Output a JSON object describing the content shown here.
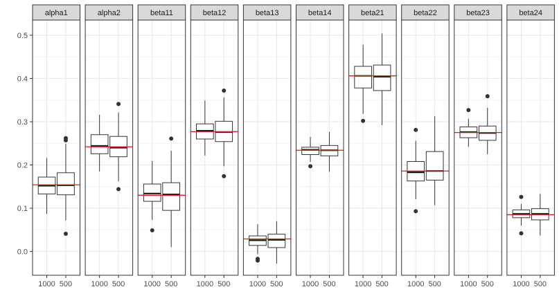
{
  "chart_data": {
    "type": "boxplot",
    "y_ticks": [
      "0.0",
      "0.1",
      "0.2",
      "0.3",
      "0.4",
      "0.5"
    ],
    "ylim": [
      -0.055,
      0.535
    ],
    "categories": [
      "1000",
      "500"
    ],
    "reference_line_color": "#e41a1c",
    "facets": [
      {
        "label": "alpha1",
        "ref": 0.154,
        "boxes": [
          {
            "cat": "1000",
            "wlo": 0.087,
            "q1": 0.133,
            "med": 0.152,
            "q3": 0.172,
            "whi": 0.216,
            "outliers": []
          },
          {
            "cat": "500",
            "wlo": 0.072,
            "q1": 0.131,
            "med": 0.153,
            "q3": 0.182,
            "whi": 0.249,
            "outliers": [
              0.041,
              0.257,
              0.262
            ]
          }
        ]
      },
      {
        "label": "alpha2",
        "ref": 0.242,
        "boxes": [
          {
            "cat": "1000",
            "wlo": 0.185,
            "q1": 0.226,
            "med": 0.244,
            "q3": 0.27,
            "whi": 0.316,
            "outliers": []
          },
          {
            "cat": "500",
            "wlo": 0.162,
            "q1": 0.219,
            "med": 0.24,
            "q3": 0.266,
            "whi": 0.321,
            "outliers": [
              0.144,
              0.341
            ]
          }
        ]
      },
      {
        "label": "beta11",
        "ref": 0.13,
        "boxes": [
          {
            "cat": "1000",
            "wlo": 0.073,
            "q1": 0.116,
            "med": 0.134,
            "q3": 0.156,
            "whi": 0.209,
            "outliers": [
              0.049
            ]
          },
          {
            "cat": "500",
            "wlo": 0.01,
            "q1": 0.095,
            "med": 0.132,
            "q3": 0.159,
            "whi": 0.233,
            "outliers": [
              0.261
            ]
          }
        ]
      },
      {
        "label": "beta12",
        "ref": 0.277,
        "boxes": [
          {
            "cat": "1000",
            "wlo": 0.222,
            "q1": 0.26,
            "med": 0.279,
            "q3": 0.295,
            "whi": 0.349,
            "outliers": []
          },
          {
            "cat": "500",
            "wlo": 0.197,
            "q1": 0.254,
            "med": 0.276,
            "q3": 0.301,
            "whi": 0.356,
            "outliers": [
              0.174,
              0.372
            ]
          }
        ]
      },
      {
        "label": "beta13",
        "ref": 0.029,
        "boxes": [
          {
            "cat": "1000",
            "wlo": -0.006,
            "q1": 0.014,
            "med": 0.026,
            "q3": 0.036,
            "whi": 0.063,
            "outliers": [
              -0.017,
              -0.021
            ]
          },
          {
            "cat": "500",
            "wlo": -0.028,
            "q1": 0.009,
            "med": 0.027,
            "q3": 0.04,
            "whi": 0.07,
            "outliers": []
          }
        ]
      },
      {
        "label": "beta14",
        "ref": 0.234,
        "boxes": [
          {
            "cat": "1000",
            "wlo": 0.207,
            "q1": 0.224,
            "med": 0.235,
            "q3": 0.241,
            "whi": 0.265,
            "outliers": [
              0.197
            ]
          },
          {
            "cat": "500",
            "wlo": 0.184,
            "q1": 0.221,
            "med": 0.234,
            "q3": 0.245,
            "whi": 0.276,
            "outliers": []
          }
        ]
      },
      {
        "label": "beta21",
        "ref": 0.406,
        "boxes": [
          {
            "cat": "1000",
            "wlo": 0.318,
            "q1": 0.378,
            "med": 0.406,
            "q3": 0.428,
            "whi": 0.478,
            "outliers": [
              0.302
            ]
          },
          {
            "cat": "500",
            "wlo": 0.292,
            "q1": 0.372,
            "med": 0.404,
            "q3": 0.431,
            "whi": 0.504,
            "outliers": []
          }
        ]
      },
      {
        "label": "beta22",
        "ref": 0.186,
        "boxes": [
          {
            "cat": "1000",
            "wlo": 0.121,
            "q1": 0.163,
            "med": 0.183,
            "q3": 0.208,
            "whi": 0.256,
            "outliers": [
              0.093,
              0.281
            ]
          },
          {
            "cat": "500",
            "wlo": 0.107,
            "q1": 0.165,
            "med": 0.186,
            "q3": 0.231,
            "whi": 0.313,
            "outliers": []
          }
        ]
      },
      {
        "label": "beta23",
        "ref": 0.275,
        "boxes": [
          {
            "cat": "1000",
            "wlo": 0.242,
            "q1": 0.263,
            "med": 0.276,
            "q3": 0.288,
            "whi": 0.307,
            "outliers": [
              0.327
            ]
          },
          {
            "cat": "500",
            "wlo": 0.225,
            "q1": 0.257,
            "med": 0.274,
            "q3": 0.29,
            "whi": 0.332,
            "outliers": [
              0.359
            ]
          }
        ]
      },
      {
        "label": "beta24",
        "ref": 0.085,
        "boxes": [
          {
            "cat": "1000",
            "wlo": 0.06,
            "q1": 0.078,
            "med": 0.087,
            "q3": 0.096,
            "whi": 0.11,
            "outliers": [
              0.042,
              0.126
            ]
          },
          {
            "cat": "500",
            "wlo": 0.037,
            "q1": 0.073,
            "med": 0.087,
            "q3": 0.099,
            "whi": 0.133,
            "outliers": []
          }
        ]
      }
    ]
  }
}
